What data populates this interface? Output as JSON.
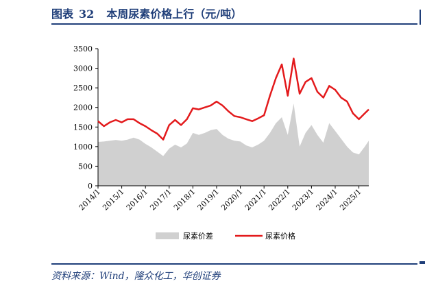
{
  "header": {
    "label": "图表",
    "number": "32",
    "title": "本周尿素价格上行（元/吨）"
  },
  "footer": {
    "source": "资料来源：Wind，隆众化工，华创证券"
  },
  "colors": {
    "accent": "#1f3e79",
    "price": "#e31a1c",
    "spread": "#d0d0d0"
  },
  "chart_data": {
    "type": "area",
    "ylim": [
      0,
      3500
    ],
    "yticks": [
      0,
      500,
      1000,
      1500,
      2000,
      2500,
      3000,
      3500
    ],
    "xticks": [
      "2014/1",
      "2015/1",
      "2016/1",
      "2017/1",
      "2018/1",
      "2019/1",
      "2020/1",
      "2021/1",
      "2022/1",
      "2023/1",
      "2024/1",
      "2025/1"
    ],
    "xrange": [
      "2014/1",
      "2025/6"
    ],
    "legend_position": "bottom",
    "series": [
      {
        "name": "尿素价差",
        "type": "area",
        "color": "#d0d0d0",
        "points": [
          [
            "2014/1",
            1120
          ],
          [
            "2014/4",
            1130
          ],
          [
            "2014/7",
            1150
          ],
          [
            "2014/10",
            1170
          ],
          [
            "2015/1",
            1150
          ],
          [
            "2015/4",
            1180
          ],
          [
            "2015/7",
            1230
          ],
          [
            "2015/10",
            1180
          ],
          [
            "2016/1",
            1070
          ],
          [
            "2016/4",
            980
          ],
          [
            "2016/7",
            870
          ],
          [
            "2016/10",
            760
          ],
          [
            "2017/1",
            950
          ],
          [
            "2017/4",
            1050
          ],
          [
            "2017/7",
            980
          ],
          [
            "2017/10",
            1080
          ],
          [
            "2018/1",
            1350
          ],
          [
            "2018/4",
            1300
          ],
          [
            "2018/7",
            1350
          ],
          [
            "2018/10",
            1420
          ],
          [
            "2019/1",
            1450
          ],
          [
            "2019/4",
            1300
          ],
          [
            "2019/7",
            1200
          ],
          [
            "2019/10",
            1150
          ],
          [
            "2020/1",
            1130
          ],
          [
            "2020/4",
            1030
          ],
          [
            "2020/7",
            980
          ],
          [
            "2020/10",
            1050
          ],
          [
            "2021/1",
            1150
          ],
          [
            "2021/4",
            1350
          ],
          [
            "2021/7",
            1600
          ],
          [
            "2021/10",
            1750
          ],
          [
            "2022/1",
            1300
          ],
          [
            "2022/4",
            2100
          ],
          [
            "2022/7",
            1000
          ],
          [
            "2022/10",
            1350
          ],
          [
            "2023/1",
            1550
          ],
          [
            "2023/4",
            1300
          ],
          [
            "2023/7",
            1100
          ],
          [
            "2023/10",
            1600
          ],
          [
            "2024/1",
            1400
          ],
          [
            "2024/4",
            1200
          ],
          [
            "2024/7",
            1000
          ],
          [
            "2024/10",
            850
          ],
          [
            "2025/1",
            800
          ],
          [
            "2025/4",
            1000
          ],
          [
            "2025/6",
            1150
          ]
        ]
      },
      {
        "name": "尿素价格",
        "type": "line",
        "color": "#e31a1c",
        "points": [
          [
            "2014/1",
            1650
          ],
          [
            "2014/4",
            1520
          ],
          [
            "2014/7",
            1620
          ],
          [
            "2014/10",
            1680
          ],
          [
            "2015/1",
            1620
          ],
          [
            "2015/4",
            1700
          ],
          [
            "2015/7",
            1700
          ],
          [
            "2015/10",
            1600
          ],
          [
            "2016/1",
            1520
          ],
          [
            "2016/4",
            1420
          ],
          [
            "2016/7",
            1330
          ],
          [
            "2016/10",
            1180
          ],
          [
            "2017/1",
            1550
          ],
          [
            "2017/4",
            1680
          ],
          [
            "2017/7",
            1550
          ],
          [
            "2017/10",
            1700
          ],
          [
            "2018/1",
            1980
          ],
          [
            "2018/4",
            1950
          ],
          [
            "2018/7",
            2000
          ],
          [
            "2018/10",
            2050
          ],
          [
            "2019/1",
            2150
          ],
          [
            "2019/4",
            2050
          ],
          [
            "2019/7",
            1900
          ],
          [
            "2019/10",
            1780
          ],
          [
            "2020/1",
            1750
          ],
          [
            "2020/4",
            1700
          ],
          [
            "2020/7",
            1650
          ],
          [
            "2020/10",
            1720
          ],
          [
            "2021/1",
            1800
          ],
          [
            "2021/4",
            2300
          ],
          [
            "2021/7",
            2750
          ],
          [
            "2021/10",
            3100
          ],
          [
            "2022/1",
            2300
          ],
          [
            "2022/4",
            3250
          ],
          [
            "2022/7",
            2350
          ],
          [
            "2022/10",
            2650
          ],
          [
            "2023/1",
            2750
          ],
          [
            "2023/4",
            2400
          ],
          [
            "2023/7",
            2250
          ],
          [
            "2023/10",
            2550
          ],
          [
            "2024/1",
            2450
          ],
          [
            "2024/4",
            2250
          ],
          [
            "2024/7",
            2150
          ],
          [
            "2024/10",
            1850
          ],
          [
            "2025/1",
            1700
          ],
          [
            "2025/4",
            1850
          ],
          [
            "2025/6",
            1950
          ]
        ]
      }
    ]
  }
}
